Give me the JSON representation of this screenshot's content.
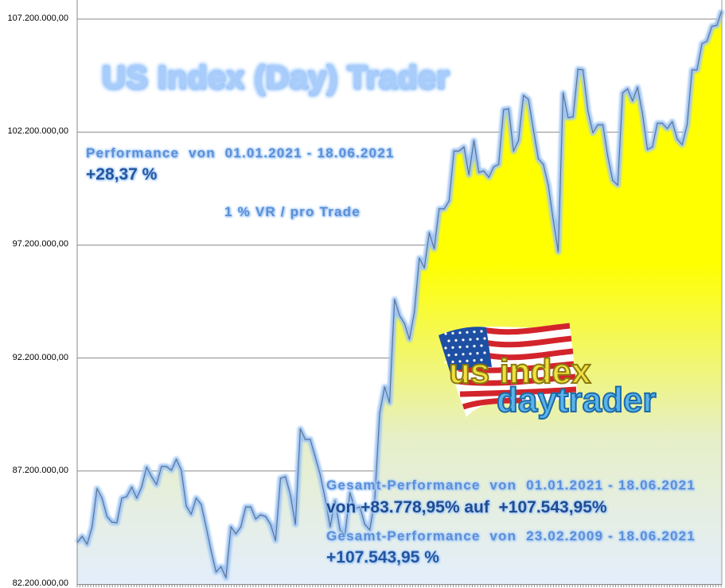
{
  "chart_data": {
    "type": "area",
    "title": "US Index (Day) Trader",
    "xlabel": "",
    "ylabel": "",
    "ylim": [
      82200000,
      107900000
    ],
    "yticks": [
      82200000,
      87200000,
      92200000,
      97200000,
      102200000,
      107200000
    ],
    "ytick_labels": [
      "82.200.000,00",
      "87.200.000,00",
      "92.200.000,00",
      "97.200.000,00",
      "102.200.000,00",
      "107.200.000,00"
    ],
    "grid": "horizontal",
    "legend": "none",
    "fill_colors": {
      "top": "#ffff00",
      "middle": "#e6efc8",
      "bottom": "#e4eefc"
    },
    "line_color": "#5f7391",
    "glow_color": "#9fc6f5",
    "values": [
      84.03,
      84.31,
      83.96,
      84.73,
      86.42,
      86.0,
      85.19,
      84.94,
      84.91,
      86.0,
      86.07,
      86.49,
      86.0,
      86.49,
      87.37,
      86.95,
      86.6,
      87.4,
      87.4,
      87.23,
      87.72,
      87.23,
      85.65,
      85.29,
      86.0,
      85.72,
      84.73,
      83.68,
      82.73,
      82.97,
      82.48,
      84.73,
      84.42,
      84.73,
      85.61,
      85.61,
      85.08,
      85.26,
      85.19,
      84.84,
      84.13,
      86.88,
      86.95,
      86.14,
      84.84,
      89.06,
      88.6,
      88.6,
      87.83,
      87.05,
      86.0,
      84.73,
      85.89,
      84.59,
      84.38,
      86.24,
      85.54,
      85.61,
      84.84,
      84.59,
      85.89,
      89.76,
      90.92,
      90.22,
      94.79,
      94.08,
      93.73,
      93.03,
      94.23,
      96.62,
      96.19,
      97.74,
      97.04,
      98.8,
      98.8,
      99.15,
      101.36,
      101.36,
      101.54,
      100.31,
      101.82,
      100.41,
      100.48,
      100.2,
      100.66,
      100.77,
      103.19,
      103.23,
      101.36,
      101.82,
      103.82,
      103.65,
      102.31,
      101.01,
      100.77,
      99.85,
      98.3,
      96.9,
      103.93,
      102.84,
      102.87,
      104.98,
      104.95,
      103.12,
      102.17,
      102.52,
      102.52,
      101.12,
      100.06,
      99.85,
      103.93,
      104.11,
      103.58,
      104.18,
      103.02,
      101.43,
      101.54,
      102.59,
      102.59,
      102.35,
      102.66,
      101.89,
      101.64,
      102.52,
      104.95,
      104.95,
      106.11,
      106.22,
      106.88,
      106.92,
      107.59
    ],
    "value_unit_multiplier": 1000000
  },
  "annotations": {
    "performance_label": "Performance  von  01.01.2021 - 18.06.2021",
    "performance_value": "+28,37 %",
    "risk_label": "1 % VR / pro Trade",
    "total_label_1": "Gesamt-Performance  von  01.01.2021 - 18.06.2021",
    "total_value_1": "von +83.778,95% auf  +107.543,95%",
    "total_label_2": "Gesamt-Performance  von  23.02.2009 - 18.06.2021",
    "total_value_2": "+107.543,95 %"
  },
  "logo": {
    "line1": "us index",
    "line2": "daytrader"
  }
}
